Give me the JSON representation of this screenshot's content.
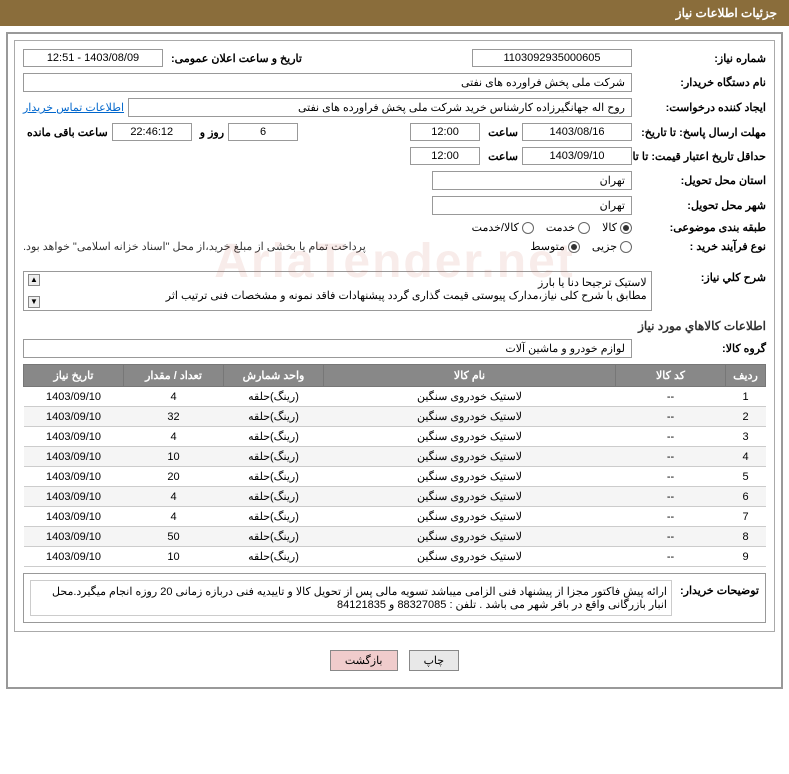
{
  "header": {
    "title": "جزئیات اطلاعات نیاز"
  },
  "fields": {
    "need_number_label": "شماره نیاز:",
    "need_number": "1103092935000605",
    "announce_label": "تاریخ و ساعت اعلان عمومی:",
    "announce_value": "1403/08/09 - 12:51",
    "buyer_org_label": "نام دستگاه خریدار:",
    "buyer_org": "شرکت ملی پخش فراورده های نفتی",
    "requester_label": "ایجاد کننده درخواست:",
    "requester": "روح اله جهانگیرزاده کارشناس خرید شرکت ملی پخش فراورده های نفتی",
    "buyer_contact_link": "اطلاعات تماس خریدار",
    "deadline_label": "مهلت ارسال پاسخ: تا تاریخ:",
    "deadline_date": "1403/08/16",
    "time_label": "ساعت",
    "deadline_time": "12:00",
    "days_remaining": "6",
    "days_and": "روز و",
    "time_remaining": "22:46:12",
    "time_remaining_label": "ساعت باقی مانده",
    "validity_label": "حداقل تاریخ اعتبار قیمت: تا تاریخ:",
    "validity_date": "1403/09/10",
    "validity_time": "12:00",
    "province_label": "استان محل تحویل:",
    "province": "تهران",
    "city_label": "شهر محل تحویل:",
    "city": "تهران",
    "category_label": "طبقه بندی موضوعی:",
    "cat_goods": "کالا",
    "cat_service": "خدمت",
    "cat_both": "کالا/خدمت",
    "process_label": "نوع فرآیند خرید :",
    "proc_small": "جزیی",
    "proc_medium": "متوسط",
    "payment_note": "پرداخت تمام یا بخشی از مبلغ خرید،از محل \"اسناد خزانه اسلامی\" خواهد بود.",
    "desc_title": "شرح کلي نياز:",
    "desc_text": "لاستیک  ترجیحا دنا یا بارز\nمطابق با شرح کلی نیاز،مدارک پیوستی قیمت گذاری گردد پیشنهادات فاقد نمونه و مشخصات فنی ترتیب اثر",
    "goods_section_title": "اطلاعات کالاهاي مورد نياز",
    "group_label": "گروه کالا:",
    "group_value": "لوازم خودرو و ماشین آلات",
    "buyer_notes_label": "توضیحات خریدار:",
    "buyer_notes": "ارائه پیش فاکتور مجزا از پیشنهاد فنی الزامی میباشد تسویه مالی پس از تحویل کالا و تاییدیه فنی دربازه زمانی 20 روزه انجام میگیرد.محل انبار بازرگانی واقع در باقر شهر می باشد . تلفن : 88327085 و 84121835"
  },
  "table": {
    "headers": {
      "row": "ردیف",
      "code": "کد کالا",
      "name": "نام کالا",
      "unit": "واحد شمارش",
      "qty": "تعداد / مقدار",
      "date": "تاریخ نیاز"
    },
    "rows": [
      {
        "n": "1",
        "code": "--",
        "name": "لاستیک خودروی سنگین",
        "unit": "(رینگ)حلقه",
        "qty": "4",
        "date": "1403/09/10"
      },
      {
        "n": "2",
        "code": "--",
        "name": "لاستیک خودروی سنگین",
        "unit": "(رینگ)حلقه",
        "qty": "32",
        "date": "1403/09/10"
      },
      {
        "n": "3",
        "code": "--",
        "name": "لاستیک خودروی سنگین",
        "unit": "(رینگ)حلقه",
        "qty": "4",
        "date": "1403/09/10"
      },
      {
        "n": "4",
        "code": "--",
        "name": "لاستیک خودروی سنگین",
        "unit": "(رینگ)حلقه",
        "qty": "10",
        "date": "1403/09/10"
      },
      {
        "n": "5",
        "code": "--",
        "name": "لاستیک خودروی سنگین",
        "unit": "(رینگ)حلقه",
        "qty": "20",
        "date": "1403/09/10"
      },
      {
        "n": "6",
        "code": "--",
        "name": "لاستیک خودروی سنگین",
        "unit": "(رینگ)حلقه",
        "qty": "4",
        "date": "1403/09/10"
      },
      {
        "n": "7",
        "code": "--",
        "name": "لاستیک خودروی سنگین",
        "unit": "(رینگ)حلقه",
        "qty": "4",
        "date": "1403/09/10"
      },
      {
        "n": "8",
        "code": "--",
        "name": "لاستیک خودروی سنگین",
        "unit": "(رینگ)حلقه",
        "qty": "50",
        "date": "1403/09/10"
      },
      {
        "n": "9",
        "code": "--",
        "name": "لاستیک خودروی سنگین",
        "unit": "(رینگ)حلقه",
        "qty": "10",
        "date": "1403/09/10"
      }
    ]
  },
  "buttons": {
    "print": "چاپ",
    "back": "بازگشت"
  },
  "watermark": "AriaTender.net",
  "styling": {
    "header_bg": "#8a6d3b",
    "header_color": "#ffffff",
    "table_header_bg": "#888888",
    "table_header_color": "#ffffff",
    "border_color": "#999999",
    "link_color": "#0066cc",
    "btn_back_bg": "#f0cccc",
    "font_family": "Tahoma",
    "base_font_size": 11
  }
}
